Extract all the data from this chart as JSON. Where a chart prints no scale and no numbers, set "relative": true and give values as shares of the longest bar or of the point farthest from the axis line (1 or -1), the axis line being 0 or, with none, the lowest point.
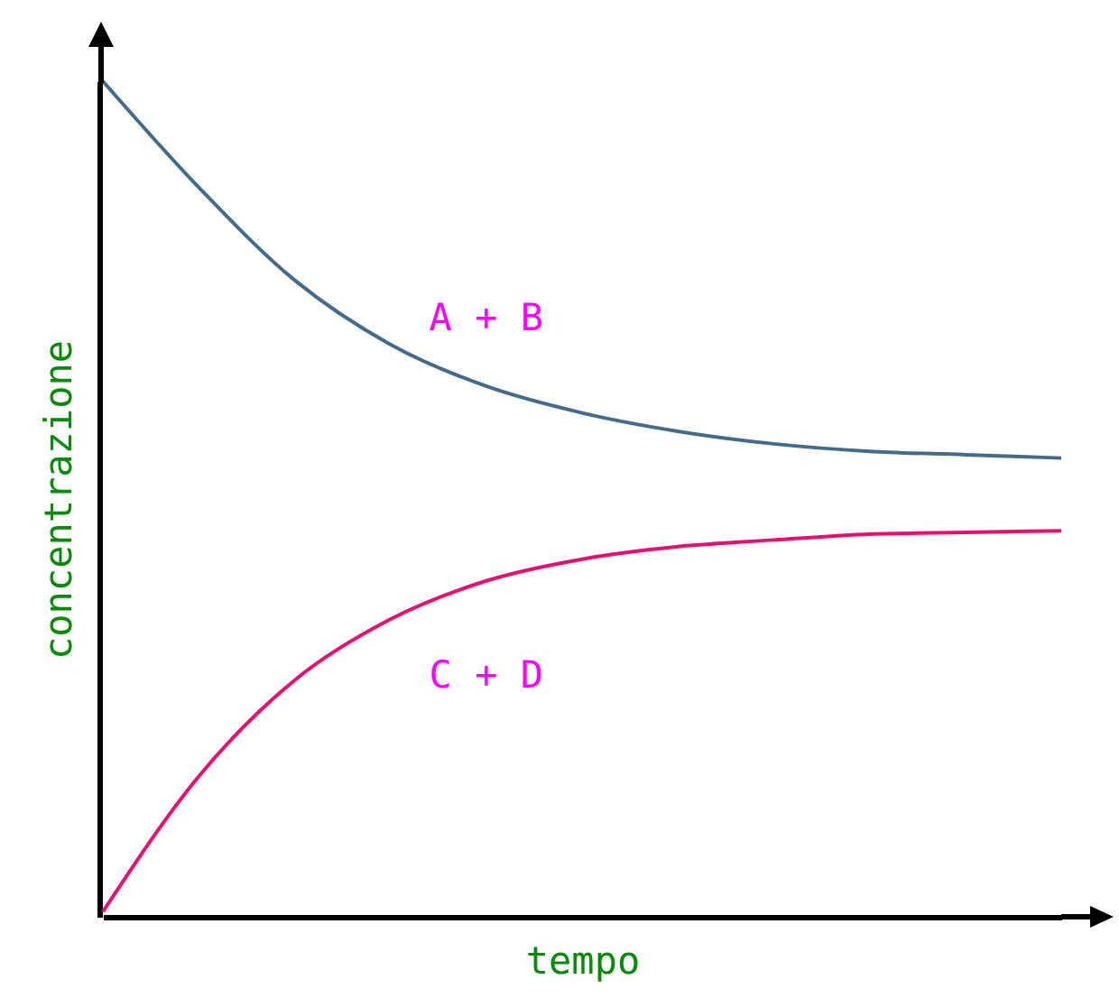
{
  "chart_data": {
    "type": "line",
    "xlabel": "tempo",
    "ylabel": "concentrazione",
    "relative": true,
    "legend": false,
    "categories": [
      null,
      null,
      null,
      null,
      null,
      null,
      null,
      null,
      null,
      null,
      null
    ],
    "series": [
      {
        "name": "A + B",
        "color": "#456b8c",
        "values": [
          1,
          0.873,
          0.762,
          0.685,
          0.635,
          0.603,
          0.581,
          0.566,
          0.557,
          0.553,
          0.549
        ]
      },
      {
        "name": "C + D",
        "color": "#e8106e",
        "values": [
          0.006,
          0.168,
          0.283,
          0.356,
          0.402,
          0.428,
          0.443,
          0.451,
          0.458,
          0.46,
          0.462
        ]
      }
    ]
  }
}
